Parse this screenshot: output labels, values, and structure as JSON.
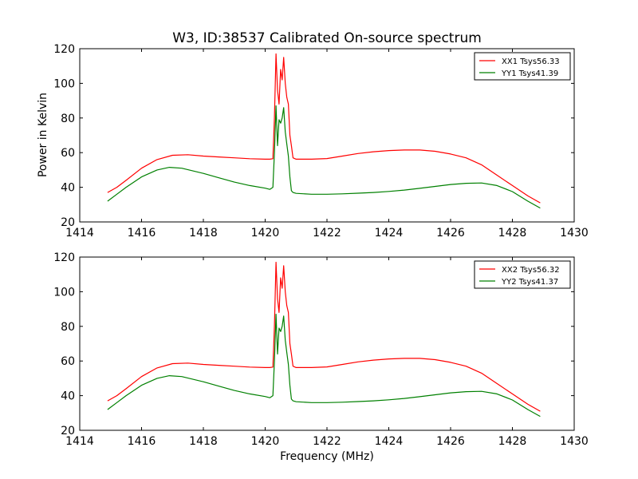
{
  "figure": {
    "title": "W3, ID:38537 Calibrated On-source spectrum",
    "xlabel": "Frequency (MHz)",
    "ylabel": "Power in Kelvin"
  },
  "chart_data": [
    {
      "type": "line",
      "title": "W3, ID:38537 Calibrated On-source spectrum",
      "xlabel": "",
      "ylabel": "Power in Kelvin",
      "xlim": [
        1414,
        1430
      ],
      "ylim": [
        20,
        120
      ],
      "xticks": [
        1414,
        1416,
        1418,
        1420,
        1422,
        1424,
        1426,
        1428,
        1430
      ],
      "yticks": [
        20,
        40,
        60,
        80,
        100,
        120
      ],
      "grid": false,
      "legend_position": "top-right",
      "series": [
        {
          "name": "XX1 Tsys56.33",
          "color": "#ff0000",
          "x": [
            1414.9,
            1415.2,
            1415.5,
            1416.0,
            1416.5,
            1417.0,
            1417.5,
            1418.0,
            1418.5,
            1419.0,
            1419.5,
            1420.0,
            1420.15,
            1420.25,
            1420.3,
            1420.35,
            1420.4,
            1420.45,
            1420.5,
            1420.55,
            1420.6,
            1420.65,
            1420.7,
            1420.75,
            1420.8,
            1420.85,
            1420.9,
            1421.0,
            1421.5,
            1422.0,
            1422.5,
            1423.0,
            1423.5,
            1424.0,
            1424.5,
            1425.0,
            1425.5,
            1426.0,
            1426.5,
            1427.0,
            1427.5,
            1428.0,
            1428.5,
            1428.9
          ],
          "y": [
            37,
            40,
            44,
            51,
            56,
            58.5,
            58.8,
            58,
            57.5,
            57,
            56.5,
            56.2,
            56.2,
            56.5,
            80,
            117,
            96,
            88,
            108,
            102,
            115,
            100,
            92,
            88,
            70,
            64,
            57,
            56.2,
            56.2,
            56.6,
            58,
            59.5,
            60.5,
            61.2,
            61.5,
            61.5,
            60.8,
            59.2,
            57,
            53,
            47,
            41,
            35,
            31
          ]
        },
        {
          "name": "YY1 Tsys41.39",
          "color": "#008000",
          "x": [
            1414.9,
            1415.2,
            1415.5,
            1416.0,
            1416.5,
            1416.9,
            1417.3,
            1418.0,
            1418.5,
            1419.0,
            1419.5,
            1420.0,
            1420.15,
            1420.25,
            1420.3,
            1420.35,
            1420.4,
            1420.45,
            1420.5,
            1420.55,
            1420.6,
            1420.65,
            1420.7,
            1420.75,
            1420.8,
            1420.85,
            1420.9,
            1421.0,
            1421.5,
            1422.0,
            1422.5,
            1423.0,
            1423.5,
            1424.0,
            1424.5,
            1425.0,
            1425.5,
            1426.0,
            1426.5,
            1427.0,
            1427.5,
            1428.0,
            1428.5,
            1428.9
          ],
          "y": [
            32,
            36,
            40,
            46,
            50,
            51.5,
            51,
            48,
            45.5,
            43,
            41,
            39.5,
            38.8,
            40,
            60,
            87,
            64,
            79,
            77,
            80,
            86,
            72,
            65,
            58,
            46,
            38,
            37,
            36.5,
            36,
            36,
            36.2,
            36.6,
            37,
            37.6,
            38.4,
            39.4,
            40.5,
            41.6,
            42.3,
            42.5,
            41,
            37.5,
            32,
            28
          ]
        }
      ]
    },
    {
      "type": "line",
      "title": "",
      "xlabel": "Frequency (MHz)",
      "ylabel": "",
      "xlim": [
        1414,
        1430
      ],
      "ylim": [
        20,
        120
      ],
      "xticks": [
        1414,
        1416,
        1418,
        1420,
        1422,
        1424,
        1426,
        1428,
        1430
      ],
      "yticks": [
        20,
        40,
        60,
        80,
        100,
        120
      ],
      "grid": false,
      "legend_position": "top-right",
      "series": [
        {
          "name": "XX2 Tsys56.32",
          "color": "#ff0000",
          "x": [
            1414.9,
            1415.2,
            1415.5,
            1416.0,
            1416.5,
            1417.0,
            1417.5,
            1418.0,
            1418.5,
            1419.0,
            1419.5,
            1420.0,
            1420.15,
            1420.25,
            1420.3,
            1420.35,
            1420.4,
            1420.45,
            1420.5,
            1420.55,
            1420.6,
            1420.65,
            1420.7,
            1420.75,
            1420.8,
            1420.85,
            1420.9,
            1421.0,
            1421.5,
            1422.0,
            1422.5,
            1423.0,
            1423.5,
            1424.0,
            1424.5,
            1425.0,
            1425.5,
            1426.0,
            1426.5,
            1427.0,
            1427.5,
            1428.0,
            1428.5,
            1428.9
          ],
          "y": [
            37,
            40,
            44,
            51,
            56,
            58.5,
            58.8,
            58,
            57.5,
            57,
            56.5,
            56.2,
            56.2,
            56.5,
            80,
            117,
            96,
            88,
            108,
            102,
            115,
            100,
            92,
            88,
            70,
            64,
            57,
            56.2,
            56.2,
            56.6,
            58,
            59.5,
            60.5,
            61.2,
            61.5,
            61.5,
            60.8,
            59.2,
            57,
            53,
            47,
            41,
            35,
            31
          ]
        },
        {
          "name": "YY2 Tsys41.37",
          "color": "#008000",
          "x": [
            1414.9,
            1415.2,
            1415.5,
            1416.0,
            1416.5,
            1416.9,
            1417.3,
            1418.0,
            1418.5,
            1419.0,
            1419.5,
            1420.0,
            1420.15,
            1420.25,
            1420.3,
            1420.35,
            1420.4,
            1420.45,
            1420.5,
            1420.55,
            1420.6,
            1420.65,
            1420.7,
            1420.75,
            1420.8,
            1420.85,
            1420.9,
            1421.0,
            1421.5,
            1422.0,
            1422.5,
            1423.0,
            1423.5,
            1424.0,
            1424.5,
            1425.0,
            1425.5,
            1426.0,
            1426.5,
            1427.0,
            1427.5,
            1428.0,
            1428.5,
            1428.9
          ],
          "y": [
            32,
            36,
            40,
            46,
            50,
            51.5,
            51,
            48,
            45.5,
            43,
            41,
            39.5,
            38.8,
            40,
            60,
            87,
            64,
            79,
            77,
            80,
            86,
            72,
            65,
            58,
            46,
            38,
            37,
            36.5,
            36,
            36,
            36.2,
            36.6,
            37,
            37.6,
            38.4,
            39.4,
            40.5,
            41.6,
            42.3,
            42.5,
            41,
            37.5,
            32,
            28
          ]
        }
      ]
    }
  ]
}
